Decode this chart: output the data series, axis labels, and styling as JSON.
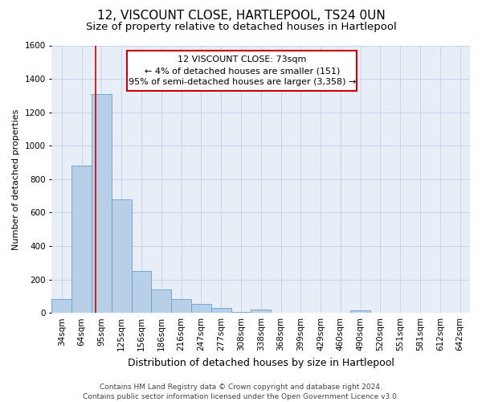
{
  "title": "12, VISCOUNT CLOSE, HARTLEPOOL, TS24 0UN",
  "subtitle": "Size of property relative to detached houses in Hartlepool",
  "xlabel": "Distribution of detached houses by size in Hartlepool",
  "ylabel": "Number of detached properties",
  "categories": [
    "34sqm",
    "64sqm",
    "95sqm",
    "125sqm",
    "156sqm",
    "186sqm",
    "216sqm",
    "247sqm",
    "277sqm",
    "308sqm",
    "338sqm",
    "368sqm",
    "399sqm",
    "429sqm",
    "460sqm",
    "490sqm",
    "520sqm",
    "551sqm",
    "581sqm",
    "612sqm",
    "642sqm"
  ],
  "values": [
    85,
    880,
    1310,
    680,
    250,
    140,
    85,
    52,
    28,
    5,
    20,
    3,
    0,
    0,
    0,
    15,
    0,
    0,
    0,
    0,
    0
  ],
  "bar_color": "#b8cfe8",
  "bar_edge_color": "#6a9fd0",
  "property_line_color": "#cc0000",
  "annotation_line1": "12 VISCOUNT CLOSE: 73sqm",
  "annotation_line2": "← 4% of detached houses are smaller (151)",
  "annotation_line3": "95% of semi-detached houses are larger (3,358) →",
  "annotation_box_color": "#ffffff",
  "annotation_box_edge_color": "#cc0000",
  "ylim": [
    0,
    1600
  ],
  "yticks": [
    0,
    200,
    400,
    600,
    800,
    1000,
    1200,
    1400,
    1600
  ],
  "grid_color": "#c8d4e8",
  "plot_bg_color": "#e8eef8",
  "fig_bg_color": "#ffffff",
  "footer_text": "Contains HM Land Registry data © Crown copyright and database right 2024.\nContains public sector information licensed under the Open Government Licence v3.0.",
  "title_fontsize": 11,
  "subtitle_fontsize": 9.5,
  "xlabel_fontsize": 9,
  "ylabel_fontsize": 8,
  "tick_fontsize": 7.5,
  "annot_fontsize": 8,
  "footer_fontsize": 6.5,
  "line_x_index": 1.72
}
